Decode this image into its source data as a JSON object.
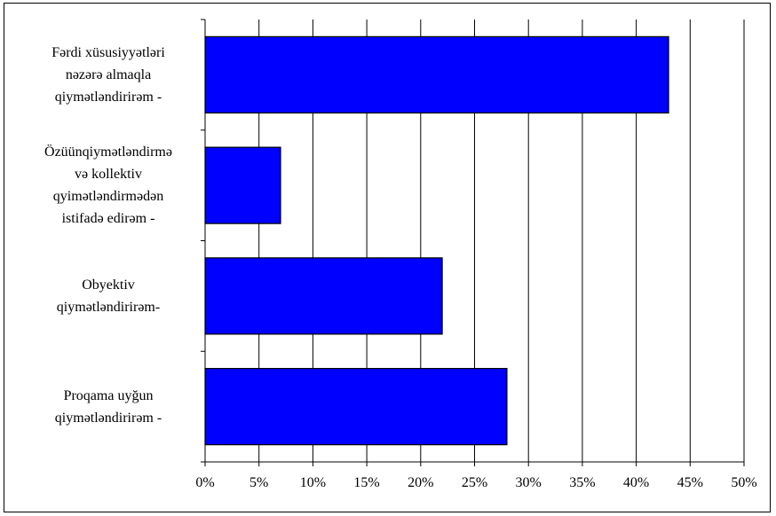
{
  "chart_data": {
    "type": "bar",
    "orientation": "horizontal",
    "categories": [
      "Fərdi xüsusiyyətləri\nnəzərə almaqla\nqiymətləndirirəm -",
      "Özüünqiymətləndirmə\nvə kollektiv\nqyimətləndirmədən\nistifadə edirəm -",
      "Obyektiv\nqiymətləndirirəm-",
      "Proqama uyğun\nqiymətləndirirəm -"
    ],
    "values": [
      43,
      7,
      22,
      28
    ],
    "xlim": [
      0,
      50
    ],
    "x_ticks": [
      "0%",
      "5%",
      "10%",
      "15%",
      "20%",
      "25%",
      "30%",
      "35%",
      "40%",
      "45%",
      "50%"
    ],
    "grid": "vertical",
    "legend": "none",
    "colors": {
      "bar": "#0000ff",
      "bar_stroke": "#000000",
      "grid": "#000000"
    }
  }
}
